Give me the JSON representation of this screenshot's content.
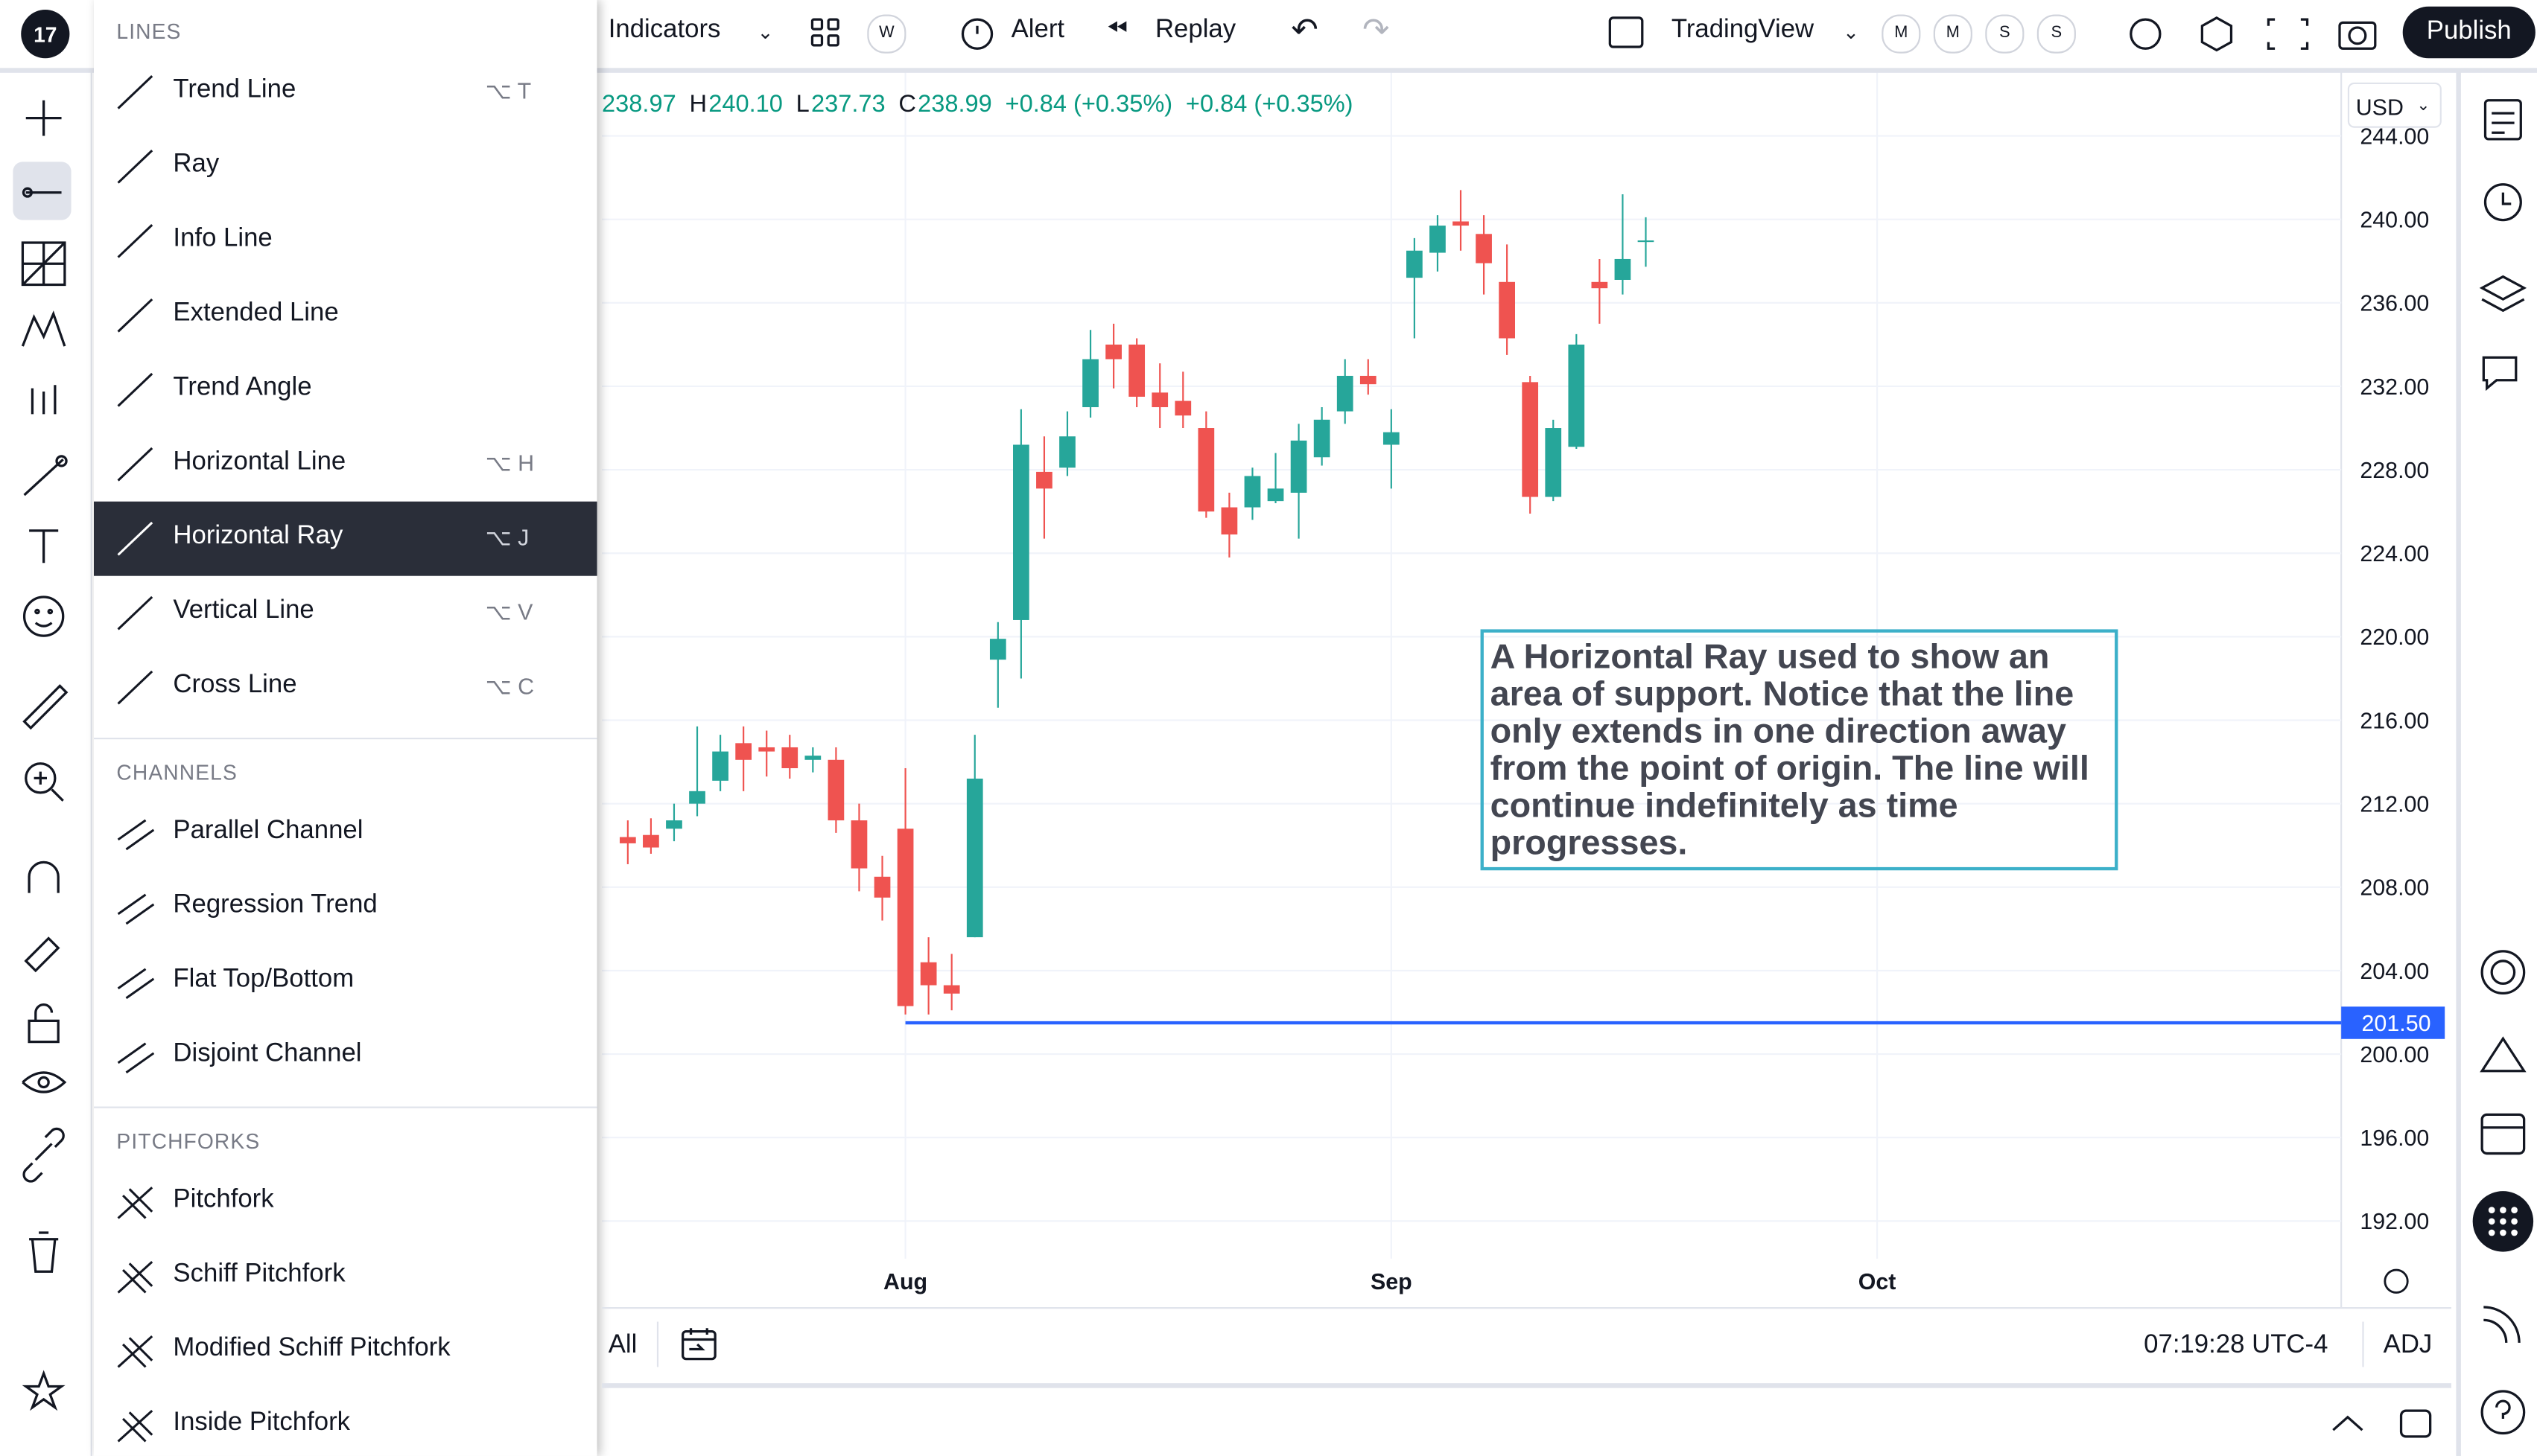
{
  "toolbar": {
    "indicators": "Indicators",
    "interval": "W",
    "alert": "Alert",
    "replay": "Replay",
    "layout": "TradingView",
    "pills": [
      "M",
      "M",
      "S",
      "S"
    ],
    "publish": "Publish"
  },
  "menu": {
    "sections": [
      {
        "title": "LINES",
        "items": [
          {
            "label": "Trend Line",
            "shortcut": "⌥ T"
          },
          {
            "label": "Ray"
          },
          {
            "label": "Info Line"
          },
          {
            "label": "Extended Line"
          },
          {
            "label": "Trend Angle"
          },
          {
            "label": "Horizontal Line",
            "shortcut": "⌥ H"
          },
          {
            "label": "Horizontal Ray",
            "shortcut": "⌥ J"
          },
          {
            "label": "Vertical Line",
            "shortcut": "⌥ V"
          },
          {
            "label": "Cross Line",
            "shortcut": "⌥ C"
          }
        ]
      },
      {
        "title": "CHANNELS",
        "items": [
          {
            "label": "Parallel Channel"
          },
          {
            "label": "Regression Trend"
          },
          {
            "label": "Flat Top/Bottom"
          },
          {
            "label": "Disjoint Channel"
          }
        ]
      },
      {
        "title": "PITCHFORKS",
        "items": [
          {
            "label": "Pitchfork"
          },
          {
            "label": "Schiff Pitchfork"
          },
          {
            "label": "Modified Schiff Pitchfork"
          },
          {
            "label": "Inside Pitchfork"
          }
        ]
      }
    ]
  },
  "ohlc_header": {
    "open": "238.97",
    "high_key": "H",
    "high": "240.10",
    "low_key": "L",
    "low": "237.73",
    "close_key": "C",
    "close": "238.99",
    "change": "+0.84 (+0.35%)",
    "change2": "+0.84 (+0.35%)"
  },
  "currency": "USD",
  "annotation": "A Horizontal Ray used to show an area of support. Notice that the line only extends in one direction away from the point of origin. The line will continue indefinitely as time progresses.",
  "chart_data": {
    "type": "candlestick",
    "up_color": "#26a69a",
    "down_color": "#ef5350",
    "grid": true,
    "open": [
      210.4,
      210.5,
      210.8,
      212.0,
      213.1,
      214.9,
      214.7,
      214.7,
      214.1,
      214.1,
      211.2,
      208.5,
      210.8,
      204.4,
      203.3,
      205.6,
      218.9,
      220.8,
      227.9,
      228.1,
      231.0,
      234.0,
      234.0,
      231.7,
      231.3,
      230.0,
      226.2,
      226.2,
      226.5,
      226.9,
      228.6,
      230.8,
      232.5,
      229.2,
      237.2,
      238.4,
      239.9,
      239.3,
      237.0,
      232.2,
      226.7,
      229.1,
      237.0,
      237.1,
      238.97
    ],
    "high": [
      211.2,
      211.3,
      212.0,
      215.7,
      215.3,
      215.7,
      215.5,
      215.3,
      214.7,
      214.7,
      212.0,
      209.5,
      213.7,
      205.6,
      204.8,
      215.3,
      220.7,
      230.9,
      229.6,
      230.8,
      234.7,
      235.0,
      234.3,
      233.1,
      232.7,
      230.8,
      226.9,
      228.1,
      228.8,
      230.2,
      231.0,
      233.3,
      233.3,
      230.9,
      239.1,
      240.2,
      241.4,
      240.2,
      238.8,
      232.5,
      230.4,
      234.5,
      238.1,
      241.2,
      240.1
    ],
    "low": [
      209.1,
      209.6,
      210.2,
      211.4,
      212.6,
      212.6,
      213.3,
      213.2,
      213.5,
      210.6,
      207.8,
      206.4,
      201.9,
      201.9,
      202.1,
      205.6,
      216.6,
      218.0,
      224.7,
      227.7,
      230.5,
      231.9,
      231.0,
      230.0,
      230.0,
      225.7,
      223.8,
      225.6,
      226.4,
      224.7,
      228.2,
      230.2,
      231.6,
      227.1,
      234.3,
      237.5,
      238.5,
      236.4,
      233.5,
      225.9,
      226.5,
      229.0,
      235.0,
      236.4,
      237.73
    ],
    "close": [
      210.1,
      209.9,
      211.2,
      212.6,
      214.5,
      214.1,
      214.5,
      213.7,
      214.3,
      211.2,
      208.9,
      207.5,
      202.3,
      203.3,
      202.9,
      213.2,
      219.9,
      229.2,
      227.1,
      229.6,
      233.3,
      233.3,
      231.5,
      231.0,
      230.6,
      226.0,
      224.9,
      227.7,
      227.1,
      229.4,
      230.4,
      232.5,
      232.1,
      229.8,
      238.5,
      239.7,
      239.7,
      237.9,
      234.3,
      226.7,
      230.0,
      234.0,
      236.7,
      238.1,
      238.99
    ],
    "xlim": [
      -1.12,
      74.06
    ],
    "xticks": [
      {
        "value": 12,
        "label": "Aug"
      },
      {
        "value": 33,
        "label": "Sep"
      },
      {
        "value": 54,
        "label": "Oct"
      }
    ],
    "ylim": [
      190.2,
      247.1
    ],
    "yticks": [
      {
        "value": 192,
        "label": "192.00"
      },
      {
        "value": 196,
        "label": "196.00"
      },
      {
        "value": 200,
        "label": "200.00"
      },
      {
        "value": 204,
        "label": "204.00"
      },
      {
        "value": 208,
        "label": "208.00"
      },
      {
        "value": 212,
        "label": "212.00"
      },
      {
        "value": 216,
        "label": "216.00"
      },
      {
        "value": 220,
        "label": "220.00"
      },
      {
        "value": 224,
        "label": "224.00"
      },
      {
        "value": 228,
        "label": "228.00"
      },
      {
        "value": 232,
        "label": "232.00"
      },
      {
        "value": 236,
        "label": "236.00"
      },
      {
        "value": 240,
        "label": "240.00"
      },
      {
        "value": 244,
        "label": "244.00"
      }
    ],
    "ray": {
      "value": 201.5,
      "label": "201.50",
      "start": 12,
      "color": "#2962ff"
    }
  },
  "bottom_bar": {
    "range": "All",
    "time": "07:19:28 UTC-4",
    "adj": "ADJ"
  }
}
